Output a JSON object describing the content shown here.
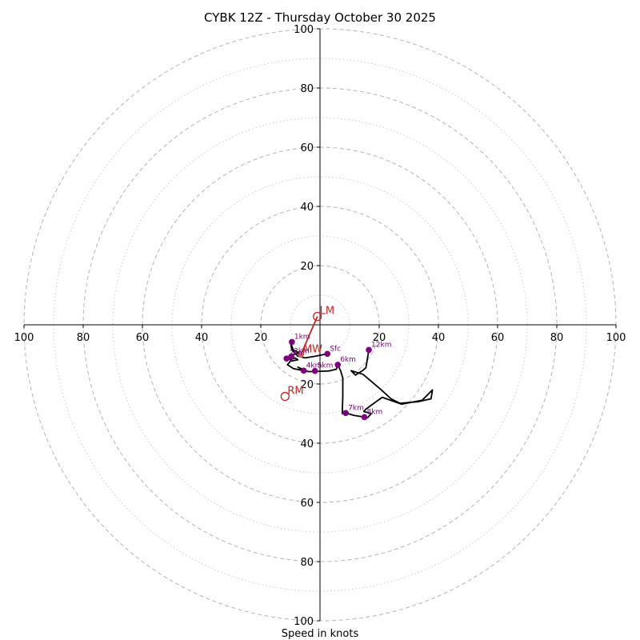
{
  "chart_data": {
    "type": "line",
    "title": "CYBK 12Z - Thursday October 30 2025",
    "xlabel": "Speed in knots",
    "ylabel": "",
    "units": "knots",
    "xlim": [
      -100,
      100
    ],
    "ylim": [
      -100,
      100
    ],
    "ring_major": [
      20,
      40,
      60,
      80,
      100
    ],
    "ring_minor": [
      10,
      30,
      50,
      70,
      90
    ],
    "x_tick_labels": [
      "100",
      "80",
      "60",
      "40",
      "20",
      "20",
      "40",
      "60",
      "80",
      "100"
    ],
    "y_tick_labels": [
      "100",
      "80",
      "60",
      "40",
      "20",
      "20",
      "40",
      "60",
      "80",
      "100"
    ],
    "colors": {
      "trace": "#000000",
      "markers": "#800080",
      "motion": "#cc2222",
      "rings": "#bbbbbb"
    },
    "series": [
      {
        "name": "hodograph",
        "points": [
          [
            2.5,
            -9.8
          ],
          [
            -1,
            -10.5
          ],
          [
            -5,
            -11.2
          ],
          [
            -7.5,
            -10.6
          ],
          [
            -9.5,
            -8.5
          ],
          [
            -10,
            -6
          ],
          [
            -9,
            -8.5
          ],
          [
            -7,
            -9.5
          ],
          [
            -9.5,
            -10.2
          ],
          [
            -11.3,
            -11.4
          ],
          [
            -10,
            -11.8
          ],
          [
            -8.5,
            -11.2
          ],
          [
            -7.5,
            -11.8
          ],
          [
            -10,
            -12.3
          ],
          [
            -11,
            -13.5
          ],
          [
            -9,
            -14.8
          ],
          [
            -5.5,
            -15.5
          ],
          [
            -7.5,
            -14.3
          ],
          [
            -4,
            -15.8
          ],
          [
            -2,
            -15.8
          ],
          [
            0,
            -15.7
          ],
          [
            3,
            -15.6
          ],
          [
            5.5,
            -15
          ],
          [
            6,
            -13.5
          ],
          [
            7,
            -15.6
          ],
          [
            7.7,
            -18
          ],
          [
            7.7,
            -24
          ],
          [
            7.5,
            -30
          ],
          [
            8.7,
            -29.8
          ],
          [
            11.5,
            -30.6
          ],
          [
            15,
            -31.2
          ],
          [
            16.2,
            -31.3
          ],
          [
            17.3,
            -30
          ],
          [
            14.8,
            -29.3
          ],
          [
            15.5,
            -28.5
          ],
          [
            21,
            -24.5
          ],
          [
            27.5,
            -26.8
          ],
          [
            34.5,
            -25.5
          ],
          [
            38,
            -22
          ],
          [
            37.5,
            -25
          ],
          [
            33,
            -26
          ],
          [
            27,
            -26.5
          ],
          [
            24,
            -25
          ],
          [
            20.5,
            -21.8
          ],
          [
            14.5,
            -16.7
          ],
          [
            10.5,
            -15.5
          ],
          [
            12,
            -17
          ],
          [
            14.5,
            -15.4
          ],
          [
            15.5,
            -14.5
          ],
          [
            16.5,
            -8.5
          ]
        ]
      }
    ],
    "height_markers": [
      {
        "label": "Sfc",
        "u": 2.5,
        "v": -9.8
      },
      {
        "label": "1km",
        "u": -9.5,
        "v": -5.8
      },
      {
        "label": "2km",
        "u": -11.3,
        "v": -11.4
      },
      {
        "label": "3km",
        "u": -9.7,
        "v": -10.7
      },
      {
        "label": "4km",
        "u": -5.5,
        "v": -15.5
      },
      {
        "label": "5km",
        "u": -1.7,
        "v": -15.6
      },
      {
        "label": "6km",
        "u": 6,
        "v": -13.5
      },
      {
        "label": "7km",
        "u": 8.7,
        "v": -29.8
      },
      {
        "label": "8km",
        "u": 15,
        "v": -31.2
      },
      {
        "label": "12km",
        "u": 16.5,
        "v": -8.5
      }
    ],
    "storm_motion": [
      {
        "label": "LM",
        "u": -0.9,
        "v": 2.8
      },
      {
        "label": "RM",
        "u": -11.8,
        "v": -24.2
      },
      {
        "label": "MW",
        "u": -6.5,
        "v": -10.2
      }
    ]
  }
}
